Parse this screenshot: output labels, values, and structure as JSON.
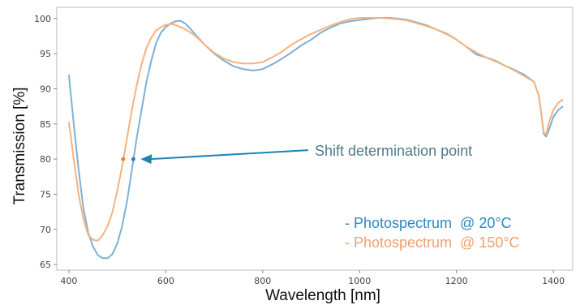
{
  "chart_data": {
    "type": "line",
    "xlabel": "Wavelength [nm]",
    "ylabel": "Transmission [%]",
    "xlim": [
      375,
      1440
    ],
    "ylim": [
      64.2,
      101.6
    ],
    "x_ticks": [
      400,
      600,
      800,
      1000,
      1200,
      1400
    ],
    "y_ticks": [
      65,
      70,
      75,
      80,
      85,
      90,
      95,
      100
    ],
    "grid": false,
    "legend_position": "bottom-right",
    "series": [
      {
        "name": "- Photospectrum  @ 20°C",
        "color": "#7fb0d4",
        "points": [
          [
            400,
            92
          ],
          [
            410,
            85
          ],
          [
            420,
            78.5
          ],
          [
            430,
            73
          ],
          [
            440,
            69.5
          ],
          [
            450,
            67.5
          ],
          [
            460,
            66.3
          ],
          [
            470,
            65.9
          ],
          [
            480,
            65.9
          ],
          [
            490,
            66.5
          ],
          [
            500,
            68
          ],
          [
            510,
            70.5
          ],
          [
            520,
            74
          ],
          [
            530,
            78.5
          ],
          [
            540,
            83
          ],
          [
            550,
            87
          ],
          [
            560,
            91
          ],
          [
            570,
            94
          ],
          [
            580,
            96.5
          ],
          [
            590,
            98
          ],
          [
            600,
            98.8
          ],
          [
            610,
            99.3
          ],
          [
            620,
            99.6
          ],
          [
            630,
            99.7
          ],
          [
            640,
            99.3
          ],
          [
            650,
            98.6
          ],
          [
            660,
            97.8
          ],
          [
            680,
            96.3
          ],
          [
            700,
            95
          ],
          [
            720,
            94
          ],
          [
            740,
            93.2
          ],
          [
            760,
            92.8
          ],
          [
            780,
            92.6
          ],
          [
            800,
            92.8
          ],
          [
            820,
            93.5
          ],
          [
            840,
            94.3
          ],
          [
            860,
            95.2
          ],
          [
            880,
            96.2
          ],
          [
            900,
            97
          ],
          [
            920,
            98
          ],
          [
            940,
            98.7
          ],
          [
            960,
            99.3
          ],
          [
            980,
            99.6
          ],
          [
            1000,
            99.8
          ],
          [
            1040,
            100.1
          ],
          [
            1060,
            100.1
          ],
          [
            1080,
            100
          ],
          [
            1100,
            99.8
          ],
          [
            1140,
            99
          ],
          [
            1180,
            97.8
          ],
          [
            1200,
            97
          ],
          [
            1220,
            96
          ],
          [
            1240,
            94.9
          ],
          [
            1260,
            94.5
          ],
          [
            1280,
            94
          ],
          [
            1300,
            93.3
          ],
          [
            1320,
            92.7
          ],
          [
            1340,
            92
          ],
          [
            1360,
            91
          ],
          [
            1370,
            89
          ],
          [
            1375,
            86.5
          ],
          [
            1380,
            83.6
          ],
          [
            1385,
            83.2
          ],
          [
            1390,
            84
          ],
          [
            1400,
            86
          ],
          [
            1410,
            87
          ],
          [
            1420,
            87.5
          ]
        ]
      },
      {
        "name": "- Photospectrum  @ 150°C",
        "color": "#f6b27e",
        "points": [
          [
            400,
            85.3
          ],
          [
            410,
            80
          ],
          [
            420,
            75
          ],
          [
            430,
            71.5
          ],
          [
            440,
            69.2
          ],
          [
            450,
            68.5
          ],
          [
            460,
            68.4
          ],
          [
            470,
            69.2
          ],
          [
            480,
            70.5
          ],
          [
            490,
            72.5
          ],
          [
            500,
            75.5
          ],
          [
            510,
            79
          ],
          [
            520,
            83
          ],
          [
            530,
            87
          ],
          [
            540,
            90.5
          ],
          [
            550,
            93.5
          ],
          [
            560,
            95.8
          ],
          [
            570,
            97.3
          ],
          [
            580,
            98.3
          ],
          [
            590,
            98.8
          ],
          [
            600,
            99.1
          ],
          [
            610,
            99.2
          ],
          [
            620,
            99.1
          ],
          [
            640,
            98.5
          ],
          [
            660,
            97.6
          ],
          [
            680,
            96.3
          ],
          [
            700,
            95.1
          ],
          [
            720,
            94.3
          ],
          [
            740,
            93.8
          ],
          [
            760,
            93.6
          ],
          [
            780,
            93.6
          ],
          [
            800,
            93.8
          ],
          [
            820,
            94.5
          ],
          [
            840,
            95.3
          ],
          [
            860,
            96.3
          ],
          [
            880,
            97.1
          ],
          [
            900,
            97.8
          ],
          [
            920,
            98.4
          ],
          [
            940,
            99
          ],
          [
            960,
            99.5
          ],
          [
            980,
            99.9
          ],
          [
            1000,
            100.1
          ],
          [
            1040,
            100.1
          ],
          [
            1060,
            100
          ],
          [
            1080,
            99.9
          ],
          [
            1100,
            99.7
          ],
          [
            1140,
            98.9
          ],
          [
            1180,
            97.9
          ],
          [
            1200,
            97
          ],
          [
            1220,
            96
          ],
          [
            1240,
            95.2
          ],
          [
            1260,
            94.5
          ],
          [
            1280,
            93.9
          ],
          [
            1300,
            93.3
          ],
          [
            1320,
            92.6
          ],
          [
            1340,
            91.8
          ],
          [
            1360,
            91
          ],
          [
            1370,
            89
          ],
          [
            1375,
            86.5
          ],
          [
            1380,
            83.8
          ],
          [
            1385,
            83.5
          ],
          [
            1390,
            85
          ],
          [
            1400,
            87
          ],
          [
            1410,
            88
          ],
          [
            1420,
            88.5
          ]
        ]
      }
    ],
    "markers": [
      {
        "x": 512,
        "y": 80,
        "color": "#f07f2e"
      },
      {
        "x": 533,
        "y": 80,
        "color": "#2f7fbf"
      }
    ],
    "annotations": [
      {
        "text": "Shift determination point",
        "target_x": 533,
        "target_y": 80,
        "arrow_color": "#1f83b0"
      }
    ]
  }
}
